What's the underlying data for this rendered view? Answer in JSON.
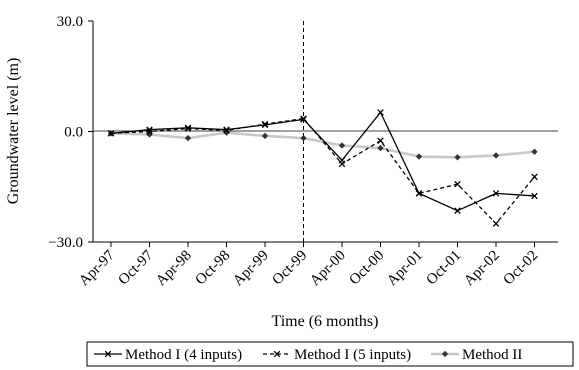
{
  "chart_data": {
    "type": "line",
    "xlabel": "Time (6 months)",
    "ylabel": "Groundwater level (m)",
    "ylim": [
      -30,
      30
    ],
    "yticks": [
      "30.0",
      "0.0",
      "−30.0"
    ],
    "categories": [
      "Apr-97",
      "Oct-97",
      "Apr-98",
      "Oct-98",
      "Apr-99",
      "Oct-99",
      "Apr-00",
      "Oct-00",
      "Apr-01",
      "Oct-01",
      "Apr-02",
      "Oct-02"
    ],
    "divider_at": "Oct-99",
    "legend_position": "bottom",
    "series": [
      {
        "name": "Method I (4 inputs)",
        "style": "solid",
        "marker": "x",
        "color": "#000000",
        "values": [
          -0.5,
          0.5,
          1.0,
          0.5,
          1.8,
          3.3,
          -7.8,
          5.2,
          -16.8,
          -21.5,
          -16.8,
          -17.5
        ]
      },
      {
        "name": "Method I (5 inputs)",
        "style": "dashed",
        "marker": "x",
        "color": "#000000",
        "values": [
          -0.5,
          0.0,
          0.8,
          0.3,
          2.0,
          3.5,
          -8.8,
          -2.5,
          -16.8,
          -14.3,
          -25.0,
          -12.3
        ]
      },
      {
        "name": "Method II",
        "style": "solid",
        "marker": "diamond",
        "color": "#c8c8c8",
        "marker_color": "#333333",
        "values": [
          -0.5,
          -0.8,
          -1.8,
          -0.3,
          -1.2,
          -1.8,
          -3.8,
          -4.5,
          -6.8,
          -7.0,
          -6.5,
          -5.5
        ]
      }
    ]
  }
}
